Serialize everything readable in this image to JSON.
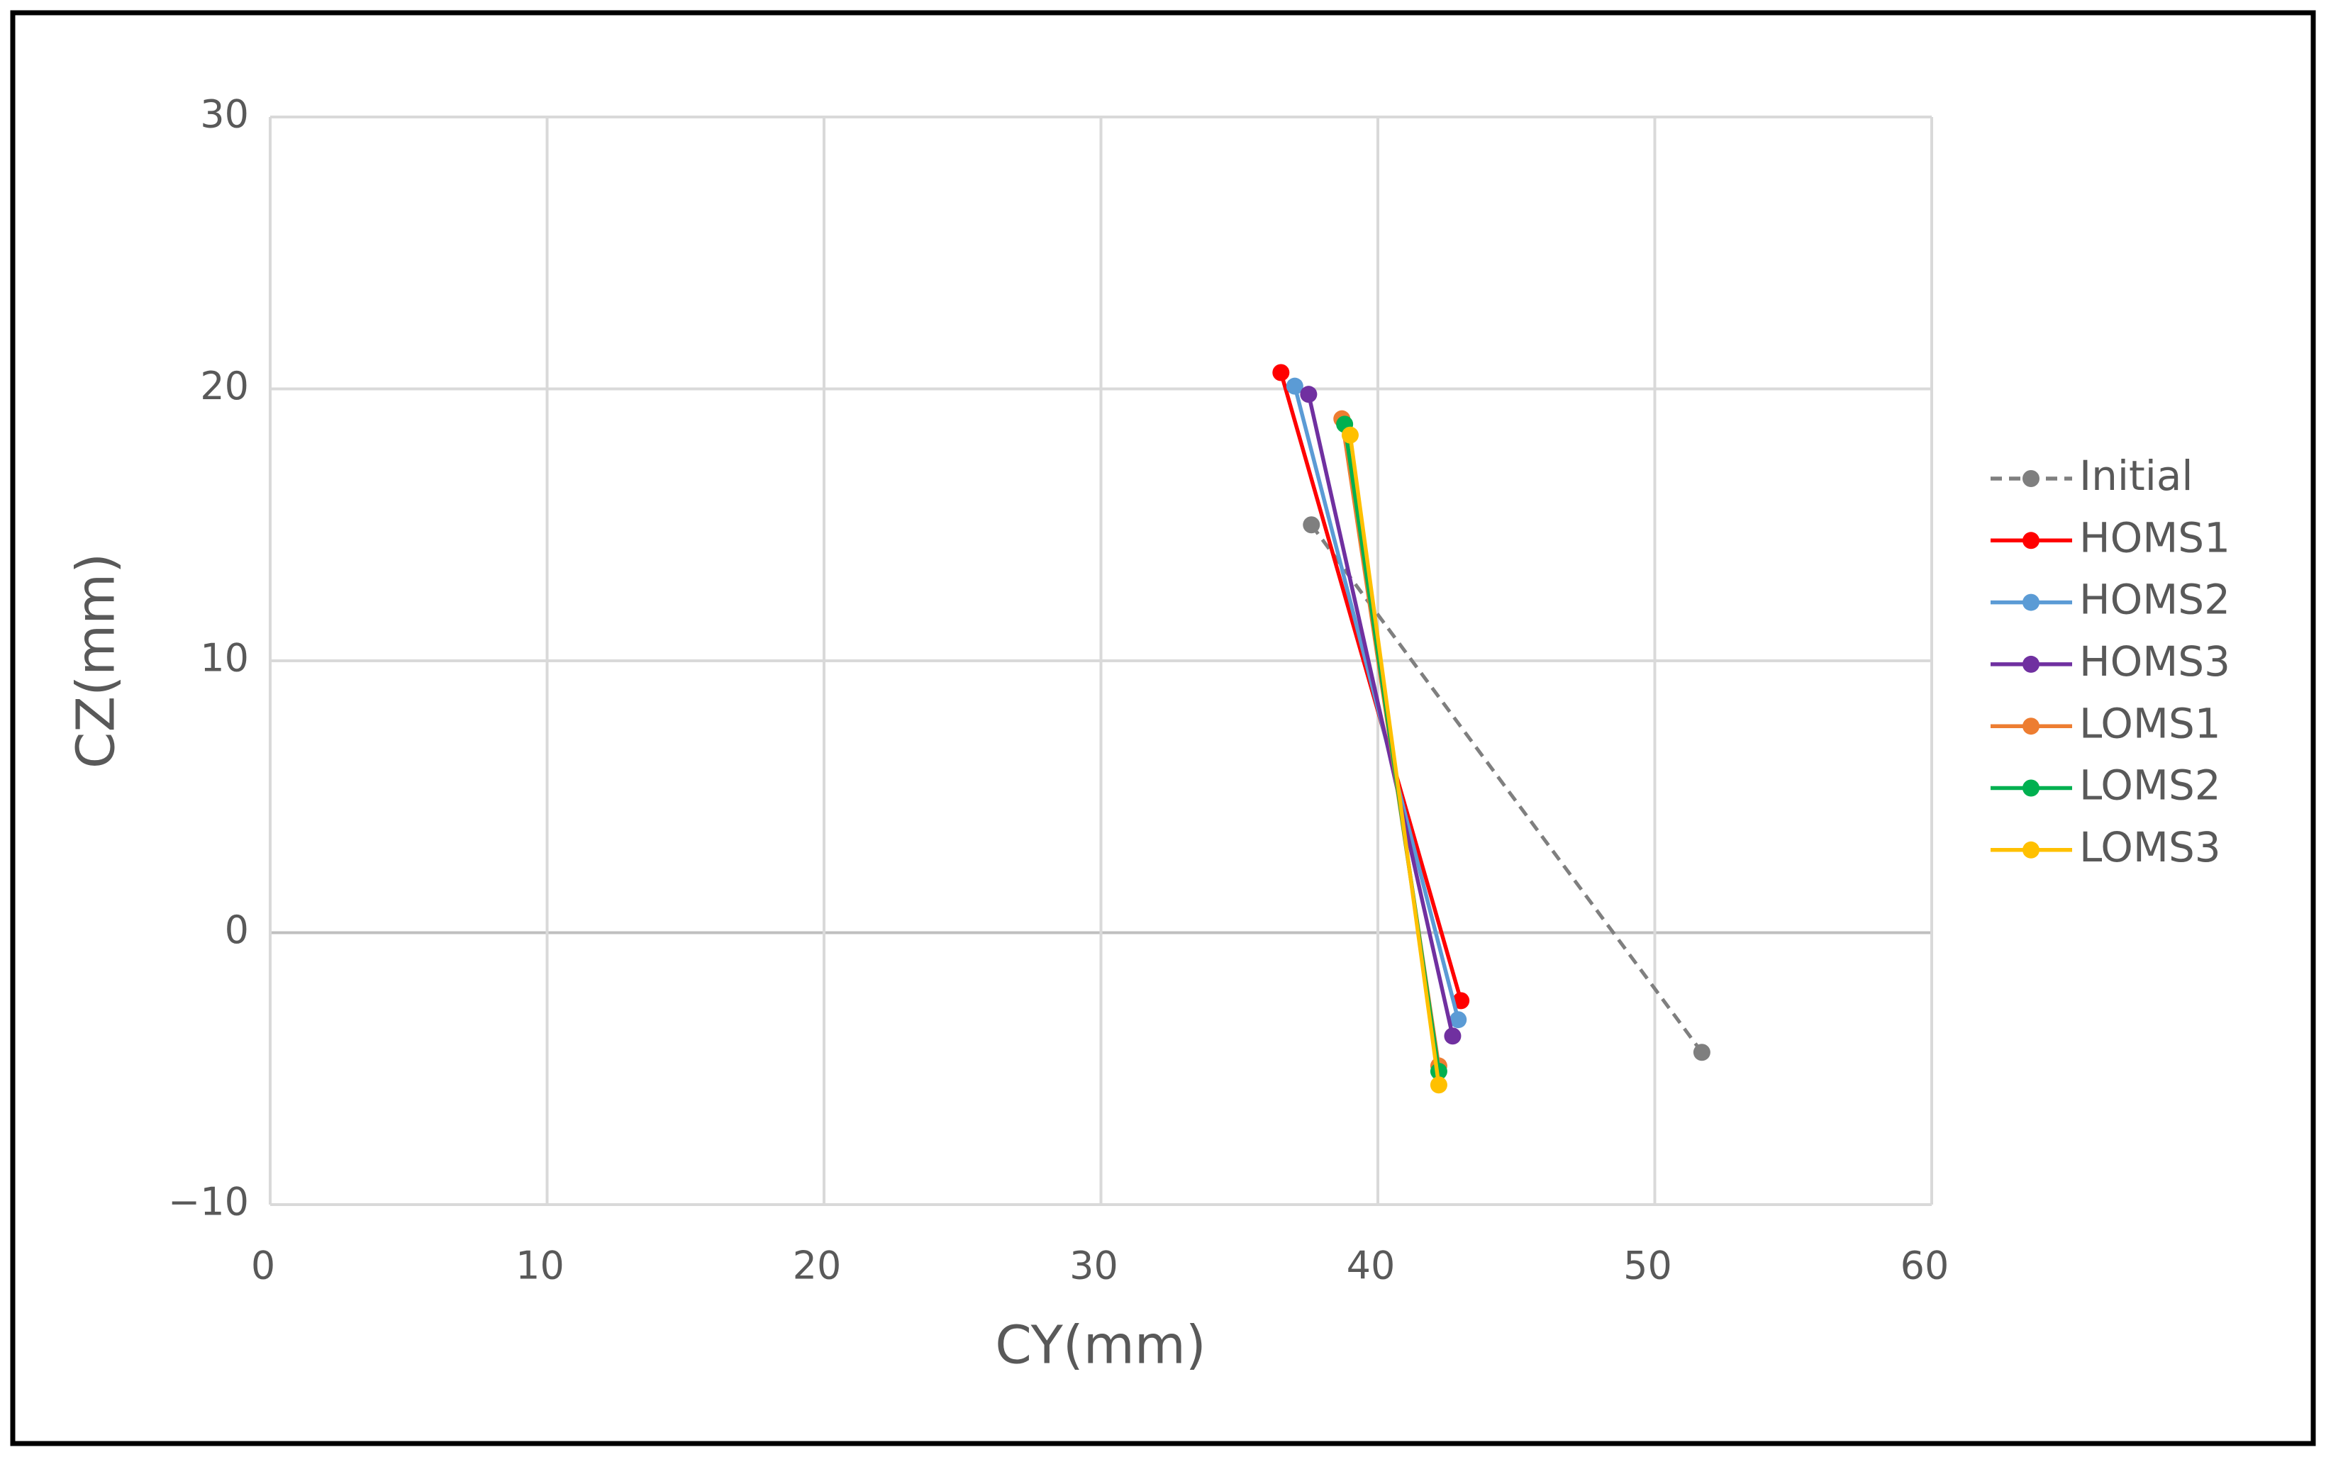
{
  "chart_data": {
    "type": "scatter",
    "lines": true,
    "x_label": "CY(mm)",
    "y_label": "CZ(mm)",
    "xlim": [
      0,
      60
    ],
    "xticks": [
      0,
      10,
      20,
      30,
      40,
      50,
      60
    ],
    "ylim": [
      -10,
      30
    ],
    "yticks": [
      {
        "value": -10,
        "label": "−10"
      },
      0,
      10,
      20,
      30
    ],
    "grid": true,
    "legend": "right",
    "series": [
      {
        "name": "Initial",
        "color": "#7f7f7f",
        "dashed": true,
        "x": [
          37.6,
          51.7
        ],
        "values": [
          15.0,
          -4.4
        ]
      },
      {
        "name": "HOMS1",
        "color": "#ff0000",
        "x": [
          36.5,
          43.0
        ],
        "values": [
          20.6,
          -2.5
        ]
      },
      {
        "name": "HOMS2",
        "color": "#5b9bd5",
        "x": [
          37.0,
          42.9
        ],
        "values": [
          20.1,
          -3.2
        ]
      },
      {
        "name": "HOMS3",
        "color": "#7030a0",
        "x": [
          37.5,
          42.7
        ],
        "values": [
          19.8,
          -3.8
        ]
      },
      {
        "name": "LOMS1",
        "color": "#ed7d31",
        "x": [
          38.7,
          42.2
        ],
        "values": [
          18.9,
          -4.9
        ]
      },
      {
        "name": "LOMS2",
        "color": "#00b050",
        "x": [
          38.8,
          42.2
        ],
        "values": [
          18.7,
          -5.1
        ]
      },
      {
        "name": "LOMS3",
        "color": "#ffc000",
        "x": [
          39.0,
          42.2
        ],
        "values": [
          18.3,
          -5.6
        ]
      }
    ]
  }
}
